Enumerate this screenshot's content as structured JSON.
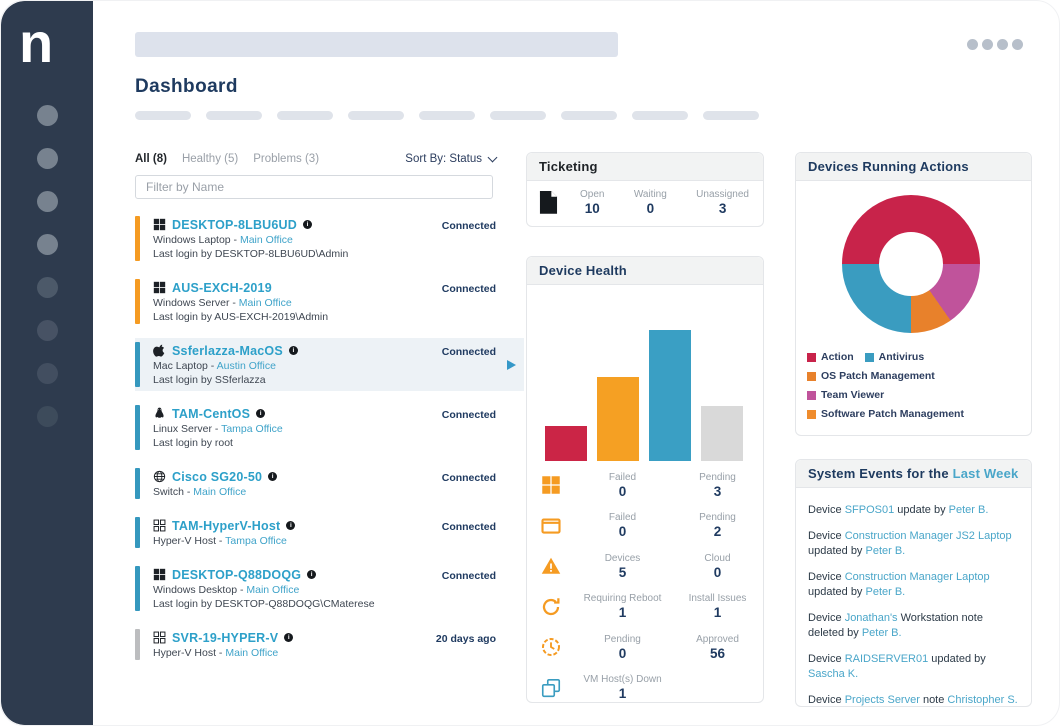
{
  "app": {
    "logo_letter": "n"
  },
  "page": {
    "title": "Dashboard"
  },
  "device_list": {
    "tabs": [
      {
        "label": "All (8)",
        "active": true
      },
      {
        "label": "Healthy (5)",
        "active": false
      },
      {
        "label": "Problems (3)",
        "active": false
      }
    ],
    "sort_label": "Sort By: Status",
    "filter_placeholder": "Filter by Name",
    "devices": [
      {
        "icon": "windows",
        "name": "DESKTOP-8LBU6UD",
        "info_dot": true,
        "type": "Windows Laptop",
        "location": "Main Office",
        "last_login": "Last login by DESKTOP-8LBU6UD\\Admin",
        "status": "Connected",
        "bar_color": "#f59b22",
        "highlighted": false
      },
      {
        "icon": "windows",
        "name": "AUS-EXCH-2019",
        "info_dot": false,
        "type": "Windows Server",
        "location": "Main Office",
        "last_login": "Last login by AUS-EXCH-2019\\Admin",
        "status": "Connected",
        "bar_color": "#f59b22",
        "highlighted": false
      },
      {
        "icon": "apple",
        "name": "Ssferlazza-MacOS",
        "info_dot": true,
        "type": "Mac Laptop",
        "location": "Austin Office",
        "last_login": "Last login by SSferlazza",
        "status": "Connected",
        "bar_color": "#3598be",
        "highlighted": true
      },
      {
        "icon": "linux",
        "name": "TAM-CentOS",
        "info_dot": true,
        "type": "Linux Server",
        "location": "Tampa Office",
        "last_login": "Last login by root",
        "status": "Connected",
        "bar_color": "#3598be",
        "highlighted": false
      },
      {
        "icon": "network",
        "name": "Cisco SG20-50",
        "info_dot": true,
        "type": "Switch",
        "location": "Main Office",
        "last_login": null,
        "status": "Connected",
        "bar_color": "#3598be",
        "highlighted": false
      },
      {
        "icon": "hyperv",
        "name": "TAM-HyperV-Host",
        "info_dot": true,
        "type": "Hyper-V Host",
        "location": "Tampa Office",
        "last_login": null,
        "status": "Connected",
        "bar_color": "#3598be",
        "highlighted": false
      },
      {
        "icon": "windows",
        "name": "DESKTOP-Q88DOQG",
        "info_dot": true,
        "type": "Windows Desktop",
        "location": "Main Office",
        "last_login": "Last login by DESKTOP-Q88DOQG\\CMaterese",
        "status": "Connected",
        "bar_color": "#3598be",
        "highlighted": false
      },
      {
        "icon": "hyperv",
        "name": "SVR-19-HYPER-V",
        "info_dot": true,
        "type": "Hyper-V Host",
        "location": "Main Office",
        "last_login": null,
        "status": "20 days ago",
        "bar_color": "#bcbdbf",
        "highlighted": false
      }
    ]
  },
  "ticketing": {
    "title": "Ticketing",
    "stats": [
      {
        "label": "Open",
        "value": "10"
      },
      {
        "label": "Waiting",
        "value": "0"
      },
      {
        "label": "Unassigned",
        "value": "3"
      }
    ]
  },
  "device_health": {
    "title": "Device Health",
    "stats": [
      {
        "icon": "windows-solid",
        "icon_color": "orange",
        "items": [
          {
            "label": "Failed",
            "value": "0"
          },
          {
            "label": "Pending",
            "value": "3"
          }
        ]
      },
      {
        "icon": "software-window",
        "icon_color": "orange",
        "items": [
          {
            "label": "Failed",
            "value": "0"
          },
          {
            "label": "Pending",
            "value": "2"
          }
        ]
      },
      {
        "icon": "warning-triangle",
        "icon_color": "orange",
        "items": [
          {
            "label": "Devices",
            "value": "5"
          },
          {
            "label": "Cloud",
            "value": "0"
          }
        ]
      },
      {
        "icon": "refresh",
        "icon_color": "orange",
        "items": [
          {
            "label": "Requiring Reboot",
            "value": "1"
          },
          {
            "label": "Install Issues",
            "value": "1"
          }
        ]
      },
      {
        "icon": "clock",
        "icon_color": "orange",
        "items": [
          {
            "label": "Pending",
            "value": "0"
          },
          {
            "label": "Approved",
            "value": "56"
          }
        ]
      },
      {
        "icon": "vm-stack",
        "icon_color": "blue",
        "items": [
          {
            "label": "VM Host(s) Down",
            "value": "1"
          }
        ]
      }
    ]
  },
  "running_actions": {
    "title": "Devices Running Actions",
    "legend": [
      {
        "name": "Action",
        "color": "#c8234a"
      },
      {
        "name": "Antivirus",
        "color": "#3a9cc0"
      },
      {
        "name": "OS Patch Management",
        "color": "#e8812b"
      },
      {
        "name": "Team Viewer",
        "color": "#c0539b"
      },
      {
        "name": "Software Patch Management",
        "color": "#ef8c2d"
      }
    ]
  },
  "system_events": {
    "title_prefix": "System Events for the",
    "title_link": "Last Week",
    "events": [
      [
        {
          "t": "Device "
        },
        {
          "t": "SFPOS01",
          "link": true
        },
        {
          "t": " update by "
        },
        {
          "t": "Peter B.",
          "link": true
        }
      ],
      [
        {
          "t": "Device "
        },
        {
          "t": "Construction Manager JS2 Laptop",
          "link": true
        },
        {
          "t": " updated by "
        },
        {
          "t": "Peter B.",
          "link": true
        }
      ],
      [
        {
          "t": "Device "
        },
        {
          "t": "Construction Manager Laptop",
          "link": true
        },
        {
          "t": " updated by "
        },
        {
          "t": "Peter B.",
          "link": true
        }
      ],
      [
        {
          "t": "Device "
        },
        {
          "t": "Jonathan's",
          "link": true
        },
        {
          "t": " Workstation note deleted by "
        },
        {
          "t": "Peter B.",
          "link": true
        }
      ],
      [
        {
          "t": "Device "
        },
        {
          "t": "RAIDSERVER01",
          "link": true
        },
        {
          "t": " updated by "
        },
        {
          "t": "Sascha K.",
          "link": true
        }
      ],
      [
        {
          "t": "Device "
        },
        {
          "t": "Projects Server",
          "link": true
        },
        {
          "t": " note "
        },
        {
          "t": "Christopher S.",
          "link": true
        }
      ]
    ]
  },
  "chart_data": [
    {
      "id": "device-health-bars",
      "type": "bar",
      "title": "Device Health",
      "categories": [
        "",
        "",
        "",
        ""
      ],
      "values": [
        27,
        64,
        100,
        42
      ],
      "bar_colors": [
        "#cb2546",
        "#f5a023",
        "#3a9fc4",
        "#d9d9d9"
      ],
      "xlabel": "",
      "ylabel": "",
      "ylim": [
        0,
        100
      ],
      "grid": false,
      "axis_labels_shown": false
    },
    {
      "id": "devices-running-actions-donut",
      "type": "pie",
      "donut": true,
      "title": "Devices Running Actions",
      "labels": [
        "Action",
        "Antivirus",
        "OS Patch Management",
        "Team Viewer",
        "Software Patch Management"
      ],
      "values": [
        50,
        25,
        10,
        15,
        0
      ],
      "colors": [
        "#c8234a",
        "#3a9cc0",
        "#e8812b",
        "#c0539b",
        "#ef8c2d"
      ],
      "legend_position": "bottom",
      "draw_order_from_9oclock_cw": [
        {
          "name": "Action",
          "color": "#c8234a",
          "deg": 180
        },
        {
          "name": "Team Viewer",
          "color": "#c0539b",
          "deg": 55
        },
        {
          "name": "OS Patch Management",
          "color": "#e8812b",
          "deg": 35
        },
        {
          "name": "Antivirus",
          "color": "#3a9cc0",
          "deg": 90
        }
      ]
    }
  ],
  "colors": {
    "sidebar": "#2e3b4e",
    "accent_navy": "#1e3a5f",
    "device_name_teal": "#2da0c9",
    "link_teal": "#4aa6c9",
    "orange": "#f59b22",
    "bar_blue": "#3598be",
    "bar_gray": "#bcbdbf",
    "highlight_row": "#edf2f6"
  }
}
